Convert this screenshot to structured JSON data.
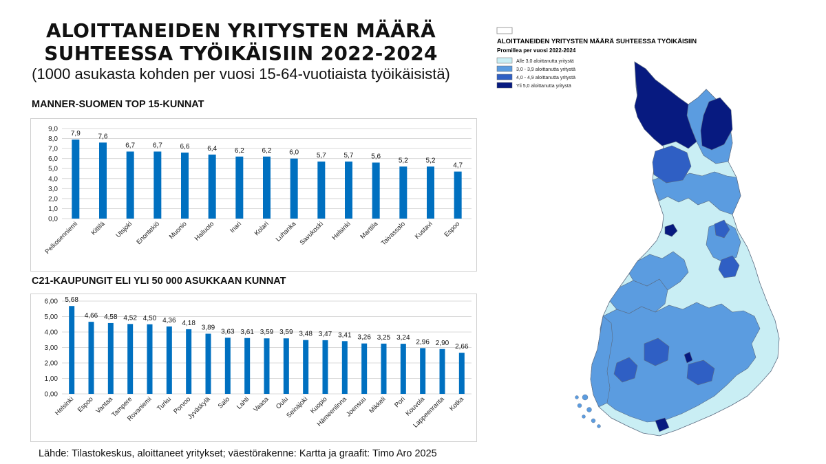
{
  "title_line1": "ALOITTANEIDEN YRITYSTEN MÄÄRÄ",
  "title_line2": "SUHTEESSA TYÖIKÄISIIN 2022-2024",
  "subtitle": "(1000 asukasta kohden per vuosi 15-64-vuotiaista työikäisistä)",
  "source": "Lähde: Tilastokeskus, aloittaneet yritykset; väestörakenne: Kartta ja graafit: Timo Aro 2025",
  "colors": {
    "bar": "#0070c0",
    "map_low": "#c9eef4",
    "map_mid": "#5b9ce0",
    "map_high": "#2f5fc4",
    "map_top": "#071a80",
    "map_border": "#5a6a80"
  },
  "map": {
    "legend_title": "ALOITTANEIDEN YRITYSTEN MÄÄRÄ SUHTEESSA TYÖIKÄISIIN",
    "legend_subtitle": "Promillea per vuosi 2022-2024",
    "legend_items": [
      {
        "label": "Alle 3,0  aloittanutta yritystä",
        "color": "#c9eef4"
      },
      {
        "label": "3,0 - 3,9 aloittanutta yritystä",
        "color": "#5b9ce0"
      },
      {
        "label": "4,0 - 4,9 aloittanutta yritystä",
        "color": "#2f5fc4"
      },
      {
        "label": "Yli 5,0 aloittanutta yritystä",
        "color": "#071a80"
      }
    ]
  },
  "chart_data": [
    {
      "type": "bar",
      "title": "MANNER-SUOMEN TOP 15-KUNNAT",
      "categories": [
        "Pelkosenniemi",
        "Kittilä",
        "Utsjoki",
        "Enontekiö",
        "Muonio",
        "Hailuoto",
        "Inari",
        "Kolari",
        "Luhanka",
        "Savukoski",
        "Helsinki",
        "Marttila",
        "Taivassalo",
        "Kustavi",
        "Espoo"
      ],
      "values": [
        7.9,
        7.6,
        6.7,
        6.7,
        6.6,
        6.4,
        6.2,
        6.2,
        6.0,
        5.7,
        5.7,
        5.6,
        5.2,
        5.2,
        4.7
      ],
      "value_labels": [
        "7,9",
        "7,6",
        "6,7",
        "6,7",
        "6,6",
        "6,4",
        "6,2",
        "6,2",
        "6,0",
        "5,7",
        "5,7",
        "5,6",
        "5,2",
        "5,2",
        "4,7"
      ],
      "yticks": [
        "0,0",
        "1,0",
        "2,0",
        "3,0",
        "4,0",
        "5,0",
        "6,0",
        "7,0",
        "8,0",
        "9,0"
      ],
      "ylim": [
        0,
        9
      ],
      "grid": true
    },
    {
      "type": "bar",
      "title": "C21-KAUPUNGIT ELI YLI 50 000 ASUKKAAN KUNNAT",
      "categories": [
        "Helsinki",
        "Espoo",
        "Vantaa",
        "Tampere",
        "Rovaniemi",
        "Turku",
        "Porvoo",
        "Jyväskylä",
        "Salo",
        "Lahti",
        "Vaasa",
        "Oulu",
        "Seinäjoki",
        "Kuopio",
        "Hämeenlinna",
        "Joensuu",
        "Mikkeli",
        "Pori",
        "Kouvola",
        "Lappeenranta",
        "Kotka"
      ],
      "values": [
        5.68,
        4.66,
        4.58,
        4.52,
        4.5,
        4.36,
        4.18,
        3.89,
        3.63,
        3.61,
        3.59,
        3.59,
        3.48,
        3.47,
        3.41,
        3.26,
        3.25,
        3.24,
        2.96,
        2.9,
        2.66
      ],
      "value_labels": [
        "5,68",
        "4,66",
        "4,58",
        "4,52",
        "4,50",
        "4,36",
        "4,18",
        "3,89",
        "3,63",
        "3,61",
        "3,59",
        "3,59",
        "3,48",
        "3,47",
        "3,41",
        "3,26",
        "3,25",
        "3,24",
        "2,96",
        "2,90",
        "2,66"
      ],
      "yticks": [
        "0,00",
        "1,00",
        "2,00",
        "3,00",
        "4,00",
        "5,00",
        "6,00"
      ],
      "ylim": [
        0,
        6
      ],
      "grid": true
    }
  ]
}
